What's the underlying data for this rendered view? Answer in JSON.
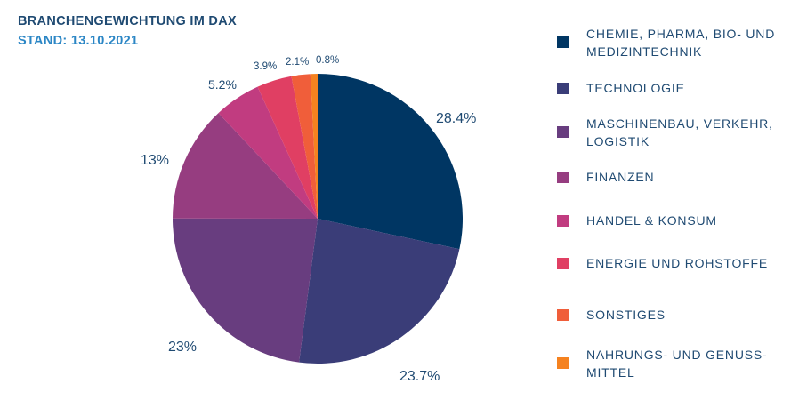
{
  "header": {
    "title": "BRANCHENGEWICHTUNG IM DAX",
    "subtitle": "STAND: 13.10.2021"
  },
  "chart_data": {
    "type": "pie",
    "title": "BRANCHENGEWICHTUNG IM DAX",
    "subtitle": "STAND: 13.10.2021",
    "legend_position": "right",
    "categories": [
      "CHEMIE, PHARMA, BIO- UND MEDIZINTECHNIK",
      "TECHNOLOGIE",
      "MASCHINENBAU, VERKEHR, LOGISTIK",
      "FINANZEN",
      "HANDEL & KONSUM",
      "ENERGIE UND ROHSTOFFE",
      "SONSTIGES",
      "NAHRUNGS- UND GENUSS-MITTEL"
    ],
    "values": [
      28.4,
      23.7,
      23,
      13,
      5.2,
      3.9,
      2.1,
      0.8
    ],
    "value_labels": [
      "28.4%",
      "23.7%",
      "23%",
      "13%",
      "5.2%",
      "3.9%",
      "2.1%",
      "0.8%"
    ],
    "legend_lines": [
      [
        "CHEMIE, PHARMA, BIO- UND",
        "MEDIZINTECHNIK"
      ],
      [
        "TECHNOLOGIE"
      ],
      [
        "MASCHINENBAU, VERKEHR,",
        "LOGISTIK"
      ],
      [
        "FINANZEN"
      ],
      [
        "HANDEL & KONSUM"
      ],
      [
        "ENERGIE UND ROHSTOFFE"
      ],
      [
        "SONSTIGES"
      ],
      [
        "NAHRUNGS- UND GENUSS-",
        "MITTEL"
      ]
    ],
    "colors": [
      "#003663",
      "#3a3d78",
      "#683d7f",
      "#963d80",
      "#c13c80",
      "#e03f63",
      "#f05e3a",
      "#f58220"
    ]
  }
}
